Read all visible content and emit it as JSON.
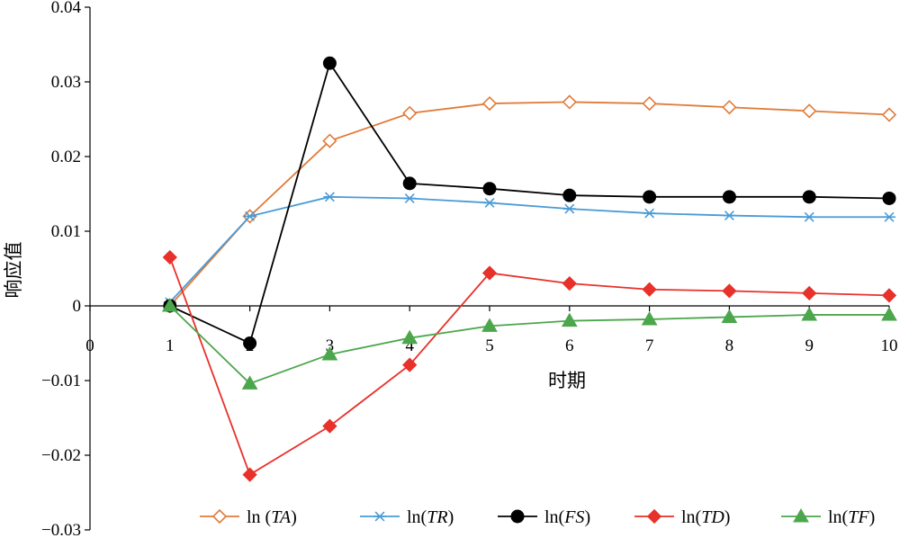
{
  "chart_data": {
    "type": "line",
    "xlabel": "时期",
    "ylabel": "响应值",
    "x": [
      1,
      2,
      3,
      4,
      5,
      6,
      7,
      8,
      9,
      10
    ],
    "xlim": [
      0,
      10
    ],
    "ylim": [
      -0.03,
      0.04
    ],
    "x_ticks": [
      "0",
      "1",
      "2",
      "3",
      "4",
      "5",
      "6",
      "7",
      "8",
      "9",
      "10"
    ],
    "y_ticks": [
      "−0.03",
      "−0.02",
      "−0.01",
      "0",
      "0.01",
      "0.02",
      "0.03",
      "0.04"
    ],
    "y_tick_values": [
      -0.03,
      -0.02,
      -0.01,
      0,
      0.01,
      0.02,
      0.03,
      0.04
    ],
    "grid": false,
    "legend_position": "bottom",
    "series": [
      {
        "name": "ln (TA)",
        "name_prefix": "ln (",
        "name_italic": "TA",
        "name_suffix": ")",
        "color": "#E07B39",
        "marker": "diamond-open",
        "values": [
          0.0,
          0.012,
          0.0221,
          0.0258,
          0.0271,
          0.0273,
          0.0271,
          0.0266,
          0.0261,
          0.0256
        ]
      },
      {
        "name": "ln(TR)",
        "name_prefix": "ln(",
        "name_italic": "TR",
        "name_suffix": ")",
        "color": "#4A9BD6",
        "marker": "asterisk",
        "values": [
          0.0005,
          0.012,
          0.0146,
          0.0144,
          0.0138,
          0.013,
          0.0124,
          0.0121,
          0.0119,
          0.0119
        ]
      },
      {
        "name": "ln(FS)",
        "name_prefix": "ln(",
        "name_italic": "FS",
        "name_suffix": ")",
        "color": "#000000",
        "marker": "circle",
        "values": [
          0.0,
          -0.005,
          0.0325,
          0.0164,
          0.0157,
          0.0148,
          0.0146,
          0.0146,
          0.0146,
          0.0144
        ]
      },
      {
        "name": "ln(TD)",
        "name_prefix": "ln(",
        "name_italic": "TD",
        "name_suffix": ")",
        "color": "#E8312A",
        "marker": "diamond",
        "values": [
          0.0065,
          -0.0226,
          -0.0161,
          -0.0079,
          0.0044,
          0.003,
          0.0022,
          0.002,
          0.0017,
          0.0014
        ]
      },
      {
        "name": "ln(TF)",
        "name_prefix": "ln(",
        "name_italic": "TF",
        "name_suffix": ")",
        "color": "#4CA64C",
        "marker": "triangle",
        "values": [
          0.0,
          -0.0104,
          -0.0065,
          -0.0043,
          -0.0027,
          -0.002,
          -0.0018,
          -0.0015,
          -0.0012,
          -0.0012
        ]
      }
    ]
  }
}
